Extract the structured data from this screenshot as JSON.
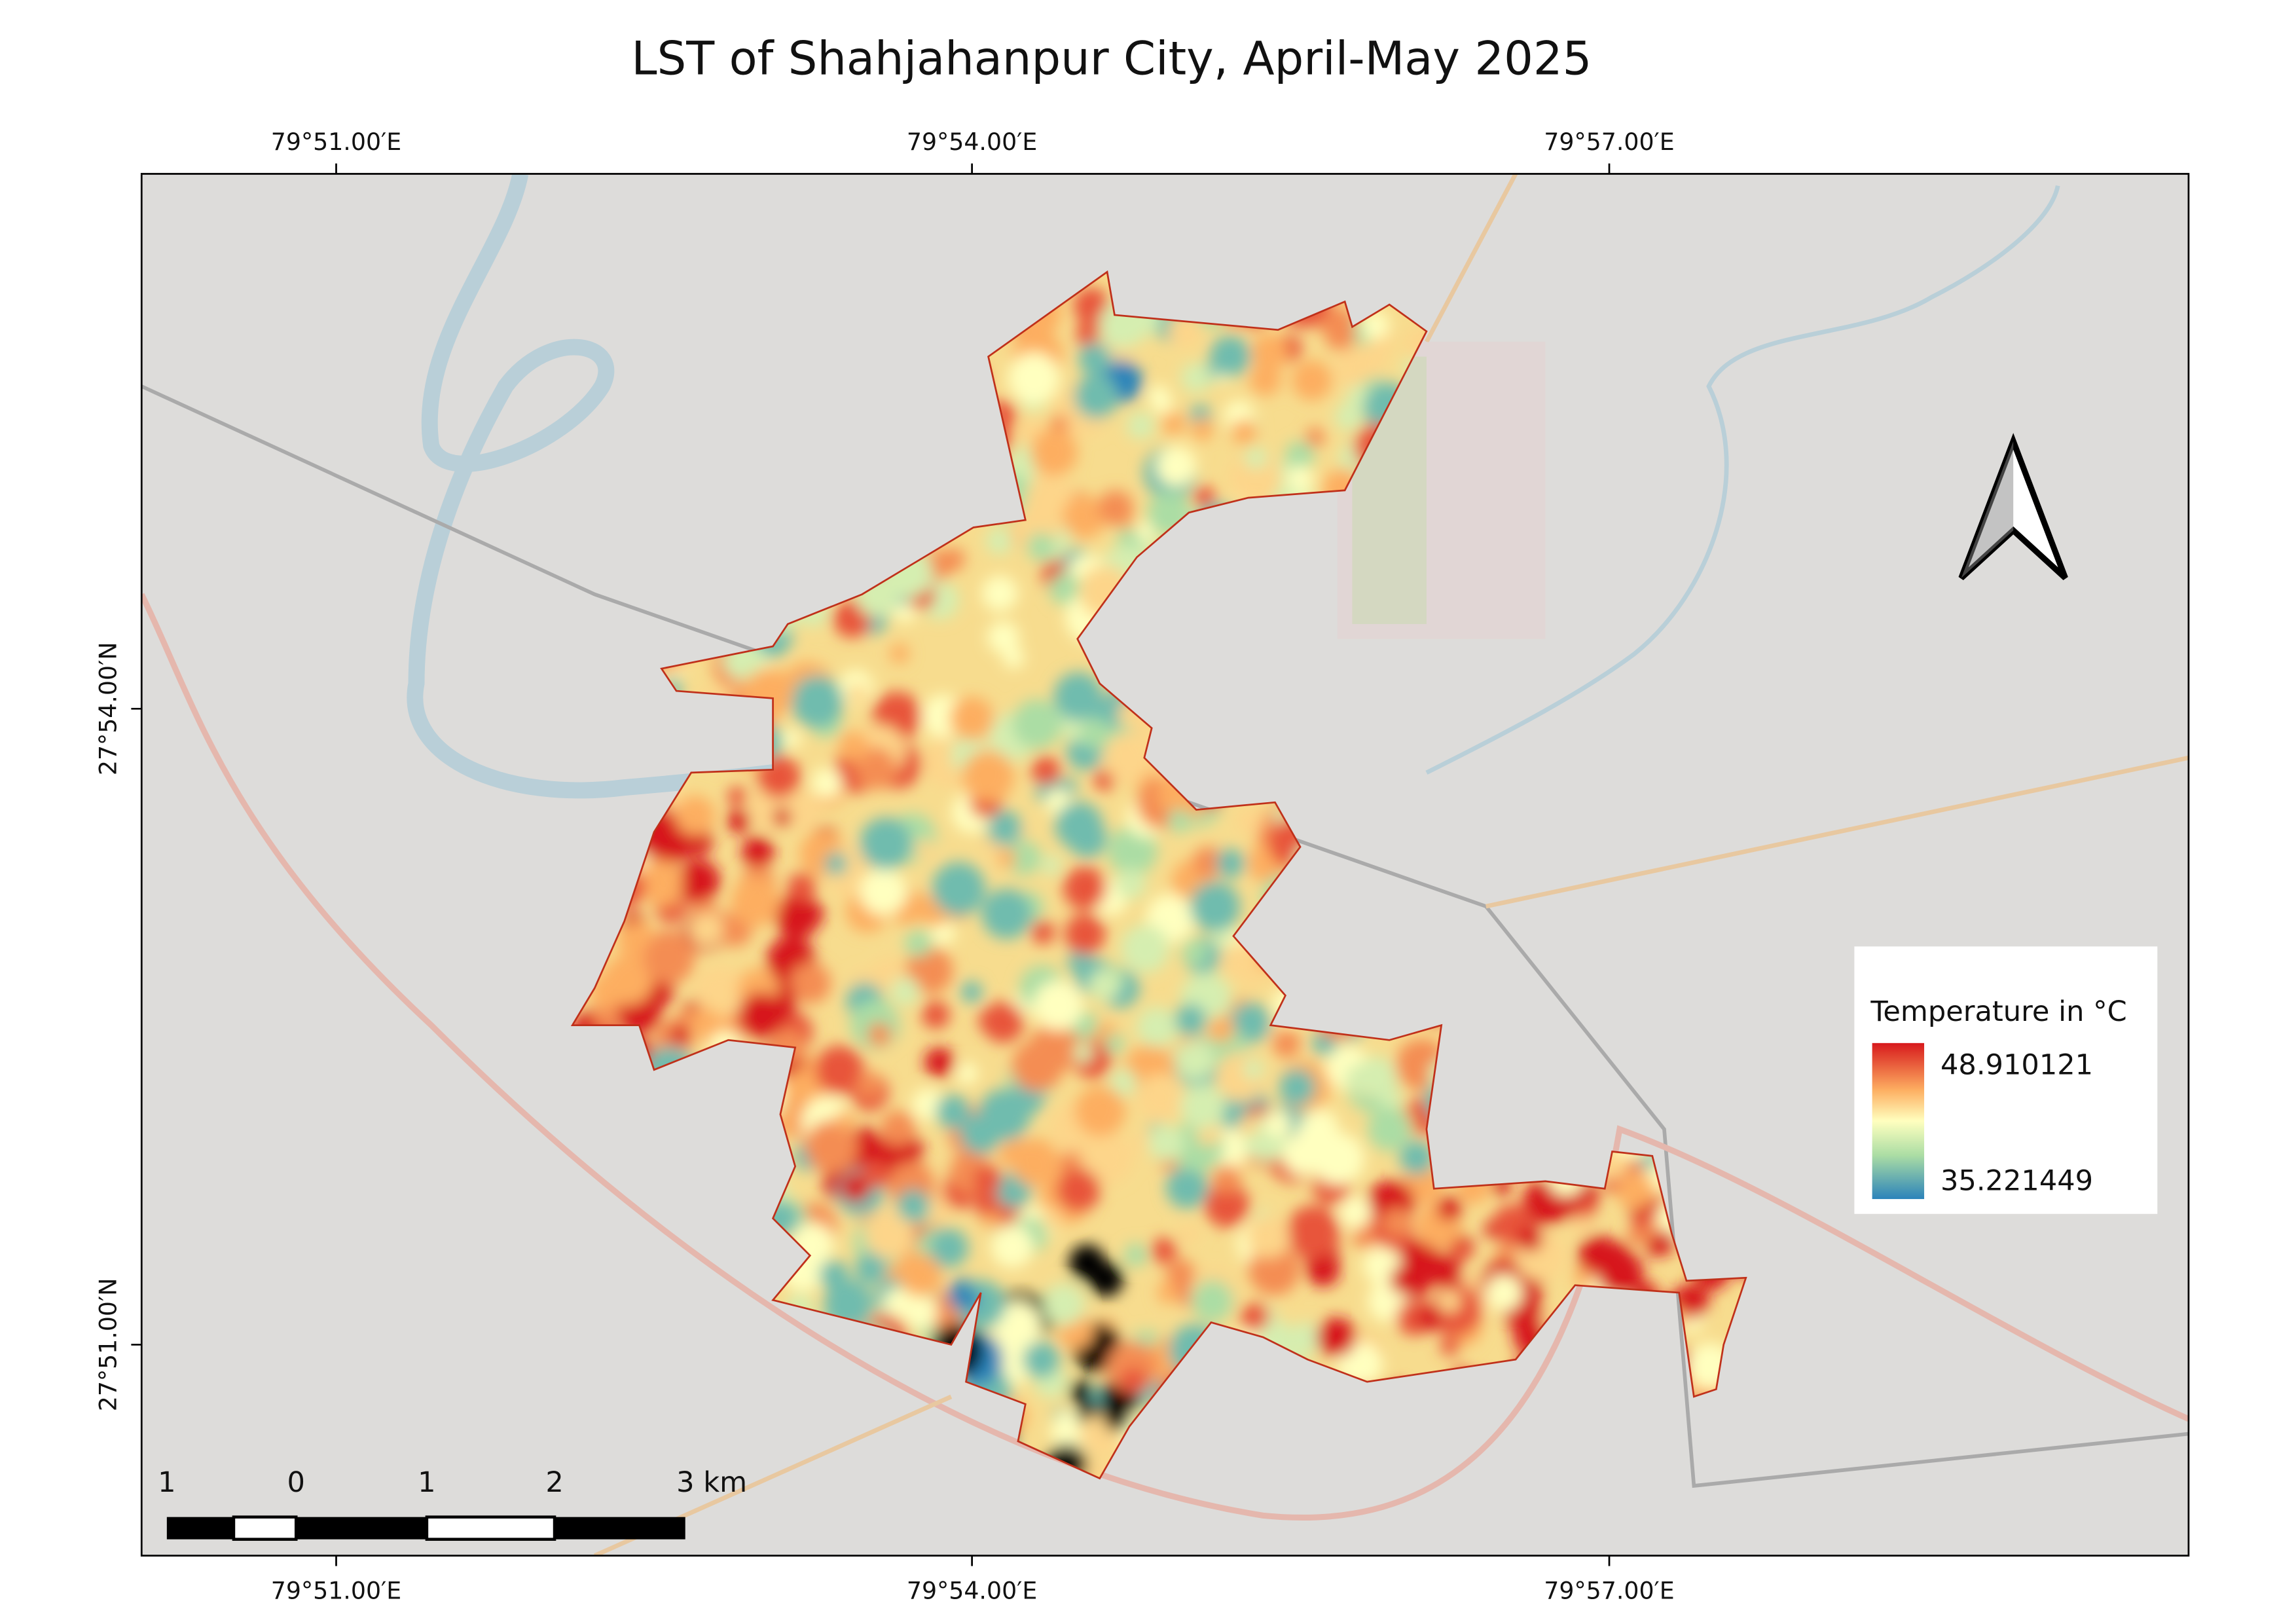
{
  "title": "LST of Shahjahanpur City, April-May 2025",
  "map": {
    "top_labels": [
      "79°51.00′E",
      "79°54.00′E",
      "79°57.00′E"
    ],
    "bottom_labels": [
      "79°51.00′E",
      "79°54.00′E",
      "79°57.00′E"
    ],
    "left_labels": [
      "27°54.00′N",
      "27°51.00′N"
    ]
  },
  "legend": {
    "title": "Temperature in °C",
    "max": 48.910121,
    "min": 35.221449
  },
  "scale_bar": {
    "labels": [
      "1",
      "0",
      "1",
      "2",
      "3 km"
    ]
  }
}
